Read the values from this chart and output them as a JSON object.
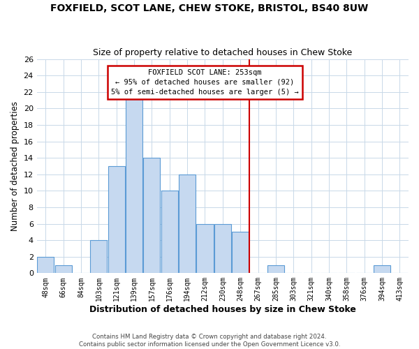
{
  "title": "FOXFIELD, SCOT LANE, CHEW STOKE, BRISTOL, BS40 8UW",
  "subtitle": "Size of property relative to detached houses in Chew Stoke",
  "xlabel": "Distribution of detached houses by size in Chew Stoke",
  "ylabel": "Number of detached properties",
  "bin_labels": [
    "48sqm",
    "66sqm",
    "84sqm",
    "103sqm",
    "121sqm",
    "139sqm",
    "157sqm",
    "176sqm",
    "194sqm",
    "212sqm",
    "230sqm",
    "248sqm",
    "267sqm",
    "285sqm",
    "303sqm",
    "321sqm",
    "340sqm",
    "358sqm",
    "376sqm",
    "394sqm",
    "413sqm"
  ],
  "bar_heights": [
    2,
    1,
    0,
    4,
    13,
    22,
    14,
    10,
    12,
    6,
    6,
    5,
    0,
    1,
    0,
    0,
    0,
    0,
    0,
    1,
    0
  ],
  "bar_color": "#c6d9f0",
  "bar_edge_color": "#5b9bd5",
  "vline_x": 11.5,
  "ylim": [
    0,
    26
  ],
  "yticks": [
    0,
    2,
    4,
    6,
    8,
    10,
    12,
    14,
    16,
    18,
    20,
    22,
    24,
    26
  ],
  "annotation_title": "FOXFIELD SCOT LANE: 253sqm",
  "annotation_line1": "← 95% of detached houses are smaller (92)",
  "annotation_line2": "5% of semi-detached houses are larger (5) →",
  "footer1": "Contains HM Land Registry data © Crown copyright and database right 2024.",
  "footer2": "Contains public sector information licensed under the Open Government Licence v3.0.",
  "vline_color": "#cc0000",
  "background_color": "#ffffff",
  "grid_color": "#c8d8e8"
}
